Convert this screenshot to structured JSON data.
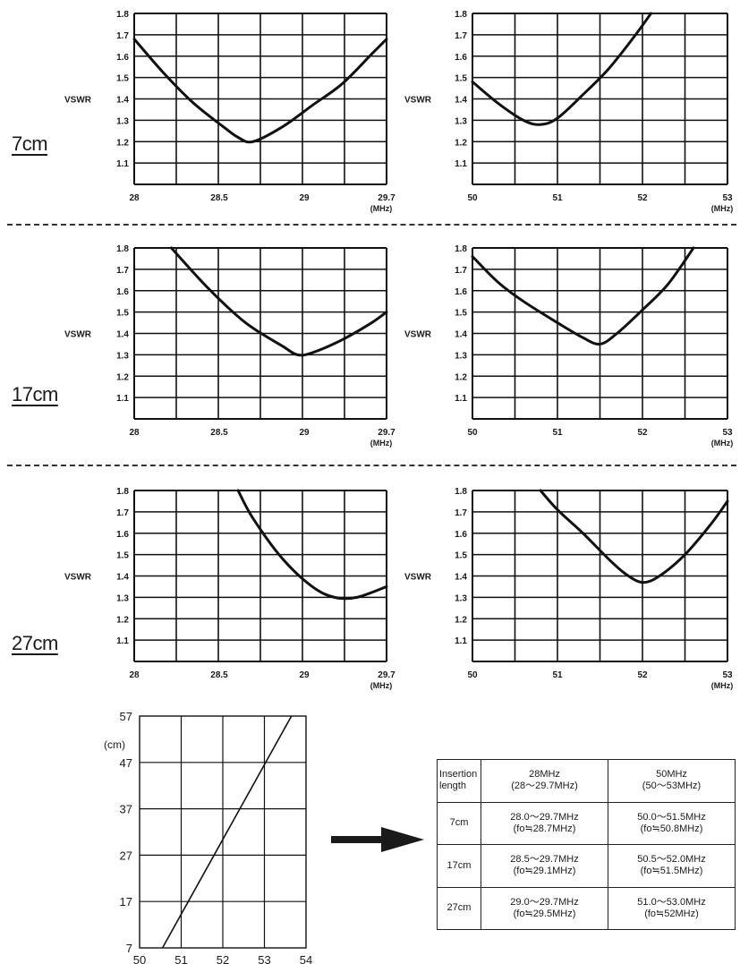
{
  "section_labels": [
    "7cm",
    "17cm",
    "27cm"
  ],
  "chart_data": [
    {
      "type": "line",
      "section": "7cm",
      "band": "28MHz",
      "ylabel": "VSWR",
      "unit": "(MHz)",
      "xlim": [
        28,
        29.7
      ],
      "ylim": [
        1.0,
        1.8
      ],
      "x_ticks": [
        "28",
        "28.5",
        "29",
        "29.7"
      ],
      "y_ticks": [
        "1.8",
        "1.7",
        "1.6",
        "1.5",
        "1.4",
        "1.3",
        "1.2",
        "1.1"
      ],
      "x": [
        28.0,
        28.2,
        28.4,
        28.6,
        28.7,
        28.8,
        29.0,
        29.2,
        29.4,
        29.6,
        29.7
      ],
      "y": [
        1.68,
        1.52,
        1.38,
        1.27,
        1.22,
        1.2,
        1.27,
        1.37,
        1.47,
        1.61,
        1.68
      ]
    },
    {
      "type": "line",
      "section": "7cm",
      "band": "50MHz",
      "ylabel": "VSWR",
      "unit": "(MHz)",
      "xlim": [
        50,
        53
      ],
      "ylim": [
        1.0,
        1.8
      ],
      "x_ticks": [
        "50",
        "51",
        "52",
        "53"
      ],
      "y_ticks": [
        "1.8",
        "1.7",
        "1.6",
        "1.5",
        "1.4",
        "1.3",
        "1.2",
        "1.1"
      ],
      "x": [
        50.0,
        50.3,
        50.6,
        50.8,
        51.0,
        51.3,
        51.6,
        51.9,
        52.1
      ],
      "y": [
        1.48,
        1.38,
        1.3,
        1.28,
        1.31,
        1.42,
        1.54,
        1.69,
        1.8
      ]
    },
    {
      "type": "line",
      "section": "17cm",
      "band": "28MHz",
      "ylabel": "VSWR",
      "unit": "(MHz)",
      "xlim": [
        28,
        29.7
      ],
      "ylim": [
        1.0,
        1.8
      ],
      "x_ticks": [
        "28",
        "28.5",
        "29",
        "29.7"
      ],
      "y_ticks": [
        "1.8",
        "1.7",
        "1.6",
        "1.5",
        "1.4",
        "1.3",
        "1.2",
        "1.1"
      ],
      "x": [
        28.25,
        28.5,
        28.75,
        29.0,
        29.1,
        29.2,
        29.4,
        29.6,
        29.7
      ],
      "y": [
        1.8,
        1.61,
        1.45,
        1.34,
        1.3,
        1.31,
        1.37,
        1.45,
        1.5
      ]
    },
    {
      "type": "line",
      "section": "17cm",
      "band": "50MHz",
      "ylabel": "VSWR",
      "unit": "(MHz)",
      "xlim": [
        50,
        53
      ],
      "ylim": [
        1.0,
        1.8
      ],
      "x_ticks": [
        "50",
        "51",
        "52",
        "53"
      ],
      "y_ticks": [
        "1.8",
        "1.7",
        "1.6",
        "1.5",
        "1.4",
        "1.3",
        "1.2",
        "1.1"
      ],
      "x": [
        50.0,
        50.3,
        50.6,
        51.0,
        51.3,
        51.5,
        51.7,
        52.0,
        52.3,
        52.6
      ],
      "y": [
        1.76,
        1.64,
        1.55,
        1.45,
        1.38,
        1.35,
        1.4,
        1.51,
        1.63,
        1.8
      ]
    },
    {
      "type": "line",
      "section": "27cm",
      "band": "28MHz",
      "ylabel": "VSWR",
      "unit": "(MHz)",
      "xlim": [
        28,
        29.7
      ],
      "ylim": [
        1.0,
        1.8
      ],
      "x_ticks": [
        "28",
        "28.5",
        "29",
        "29.7"
      ],
      "y_ticks": [
        "1.8",
        "1.7",
        "1.6",
        "1.5",
        "1.4",
        "1.3",
        "1.2",
        "1.1"
      ],
      "x": [
        28.7,
        28.8,
        29.0,
        29.2,
        29.35,
        29.5,
        29.7
      ],
      "y": [
        1.8,
        1.67,
        1.48,
        1.35,
        1.3,
        1.3,
        1.35
      ]
    },
    {
      "type": "line",
      "section": "27cm",
      "band": "50MHz",
      "ylabel": "VSWR",
      "unit": "(MHz)",
      "xlim": [
        50,
        53
      ],
      "ylim": [
        1.0,
        1.8
      ],
      "x_ticks": [
        "50",
        "51",
        "52",
        "53"
      ],
      "y_ticks": [
        "1.8",
        "1.7",
        "1.6",
        "1.5",
        "1.4",
        "1.3",
        "1.2",
        "1.1"
      ],
      "x": [
        50.8,
        51.0,
        51.3,
        51.6,
        51.8,
        52.0,
        52.2,
        52.5,
        52.8,
        53.0
      ],
      "y": [
        1.8,
        1.71,
        1.6,
        1.48,
        1.41,
        1.37,
        1.4,
        1.5,
        1.64,
        1.75
      ]
    },
    {
      "type": "line",
      "section": "length",
      "ylabel": "(cm)",
      "unit": "(MHz)",
      "xlim": [
        50,
        54
      ],
      "ylim": [
        7,
        57
      ],
      "x_ticks": [
        "50",
        "51",
        "52",
        "53",
        "54"
      ],
      "y_ticks": [
        "57",
        "47",
        "37",
        "27",
        "17",
        "7"
      ],
      "x": [
        50.55,
        53.65
      ],
      "y": [
        7,
        57
      ]
    }
  ],
  "table": {
    "header": [
      "Insertion length",
      "28MHz\n(28～29.7MHz)",
      "50MHz\n(50～53MHz)"
    ],
    "rows": [
      [
        "7cm",
        "28.0～29.7MHz\n(fo≒28.7MHz)",
        "50.0～51.5MHz\n(fo≒50.8MHz)"
      ],
      [
        "17cm",
        "28.5～29.7MHz\n(fo≒29.1MHz)",
        "50.5～52.0MHz\n(fo≒51.5MHz)"
      ],
      [
        "27cm",
        "29.0～29.7MHz\n(fo≒29.5MHz)",
        "51.0～53.0MHz\n(fo≒52MHz)"
      ]
    ]
  }
}
